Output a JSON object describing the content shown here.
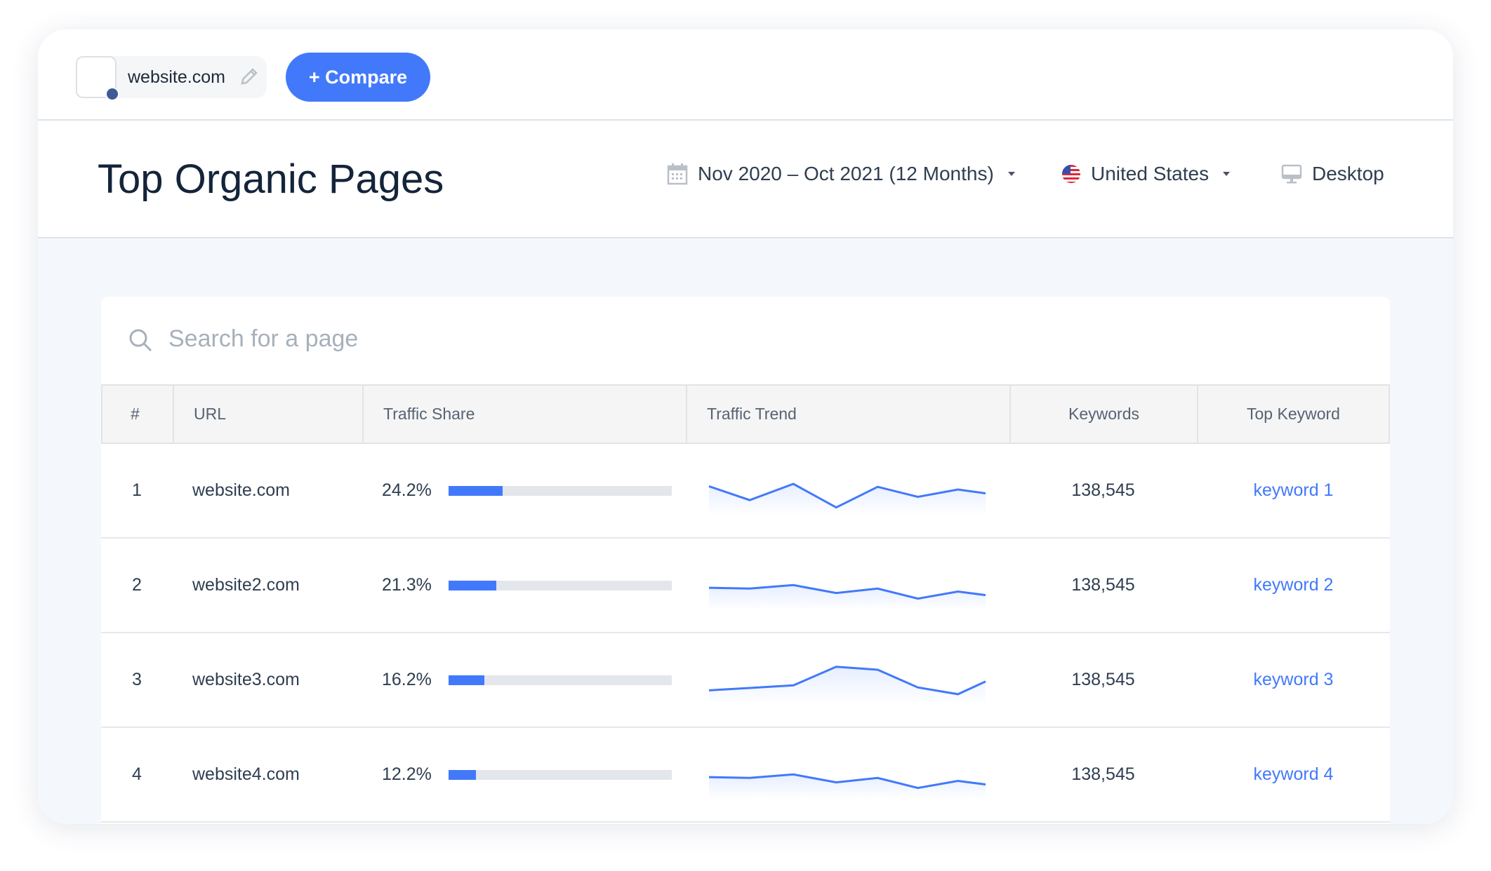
{
  "topbar": {
    "site": "website.com",
    "compare_label": "+ Compare"
  },
  "header": {
    "title": "Top Organic Pages",
    "date_range": "Nov 2020 – Oct 2021 (12 Months)",
    "country": "United States",
    "device": "Desktop"
  },
  "search": {
    "placeholder": "Search for a page"
  },
  "table": {
    "columns": [
      "#",
      "URL",
      "Traffic Share",
      "Traffic Trend",
      "Keywords",
      "Top Keyword"
    ],
    "rows": [
      {
        "rank": "1",
        "url": "website.com",
        "share_label": "24.2%",
        "share": 24.2,
        "trend": [
          80,
          33,
          88,
          8,
          78,
          44,
          69,
          56
        ],
        "keywords": "138,545",
        "top_keyword": "keyword 1"
      },
      {
        "rank": "2",
        "url": "website2.com",
        "share_label": "21.3%",
        "share": 21.3,
        "trend": [
          57,
          54,
          66,
          39,
          54,
          20,
          44,
          32
        ],
        "keywords": "138,545",
        "top_keyword": "keyword 2"
      },
      {
        "rank": "3",
        "url": "website3.com",
        "share_label": "16.2%",
        "share": 16.2,
        "trend": [
          30,
          38,
          47,
          110,
          100,
          40,
          17,
          60
        ],
        "keywords": "138,545",
        "top_keyword": "keyword 3"
      },
      {
        "rank": "4",
        "url": "website4.com",
        "share_label": "12.2%",
        "share": 12.2,
        "trend": [
          57,
          54,
          66,
          39,
          54,
          20,
          44,
          32
        ],
        "keywords": "138,545",
        "top_keyword": "keyword 4"
      }
    ]
  },
  "colors": {
    "accent": "#4279fb",
    "title": "#14243a"
  }
}
